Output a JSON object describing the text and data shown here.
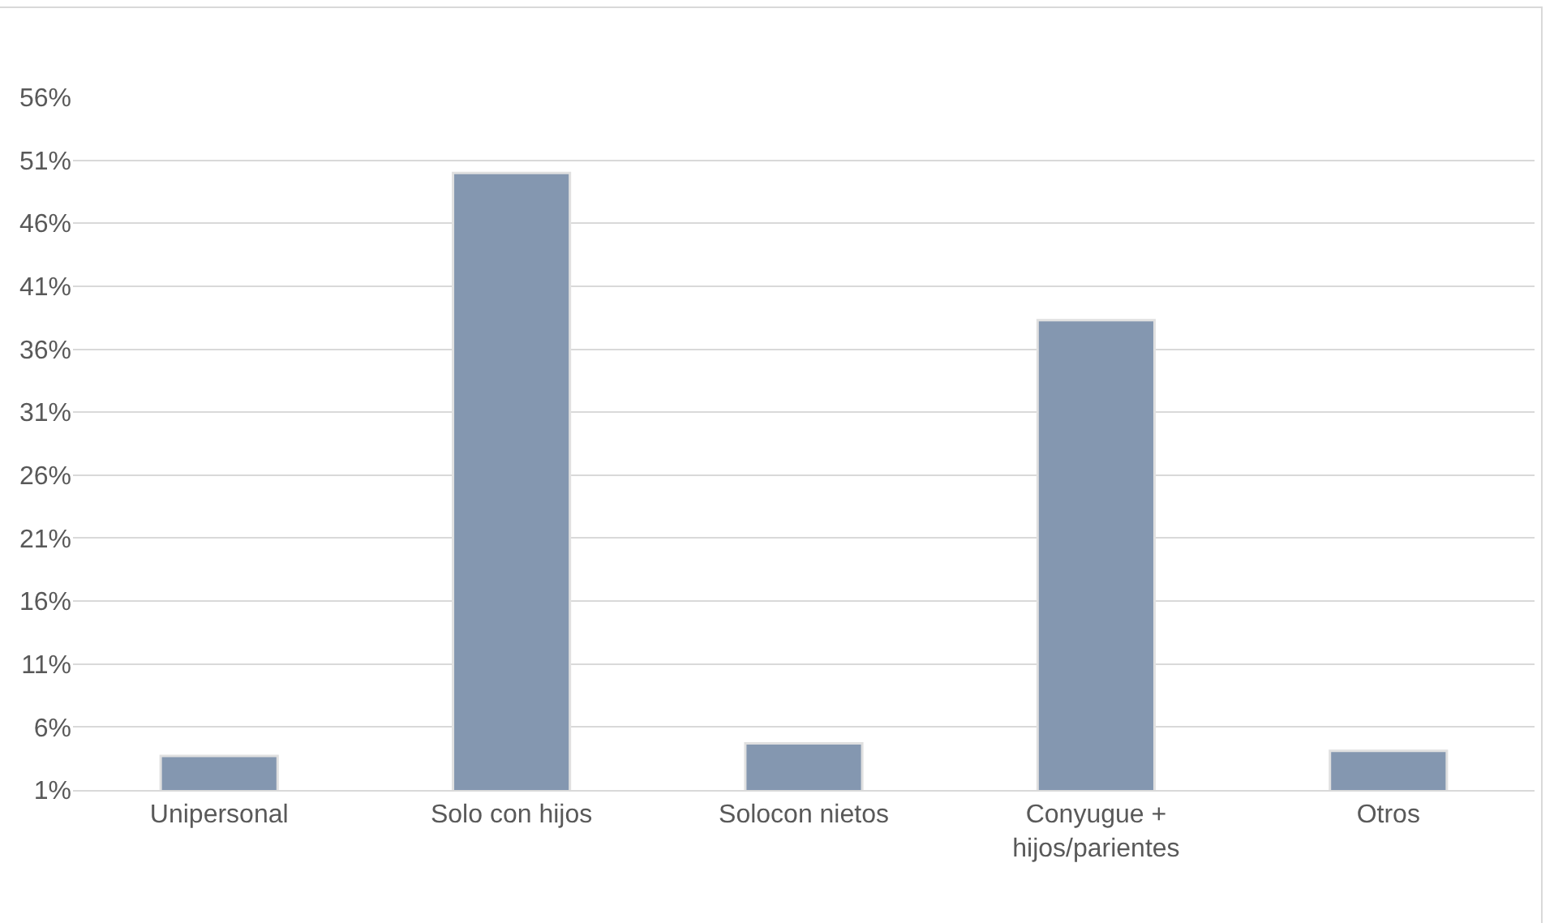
{
  "chart_data": {
    "type": "bar",
    "categories": [
      "Unipersonal",
      "Solo con hijos",
      "Solocon nietos",
      "Conyugue + hijos/parientes",
      "Otros"
    ],
    "values": [
      3.7,
      50.0,
      4.7,
      38.3,
      4.1
    ],
    "color": "#8497b0",
    "ylim": [
      1,
      56
    ],
    "yticks": [
      {
        "value": 1,
        "label": "1%"
      },
      {
        "value": 6,
        "label": "6%"
      },
      {
        "value": 11,
        "label": "11%"
      },
      {
        "value": 16,
        "label": "16%"
      },
      {
        "value": 21,
        "label": "21%"
      },
      {
        "value": 26,
        "label": "26%"
      },
      {
        "value": 31,
        "label": "31%"
      },
      {
        "value": 36,
        "label": "36%"
      },
      {
        "value": 41,
        "label": "41%"
      },
      {
        "value": 46,
        "label": "46%"
      },
      {
        "value": 51,
        "label": "51%"
      },
      {
        "value": 56,
        "label": "56%"
      }
    ],
    "grid": "y"
  }
}
